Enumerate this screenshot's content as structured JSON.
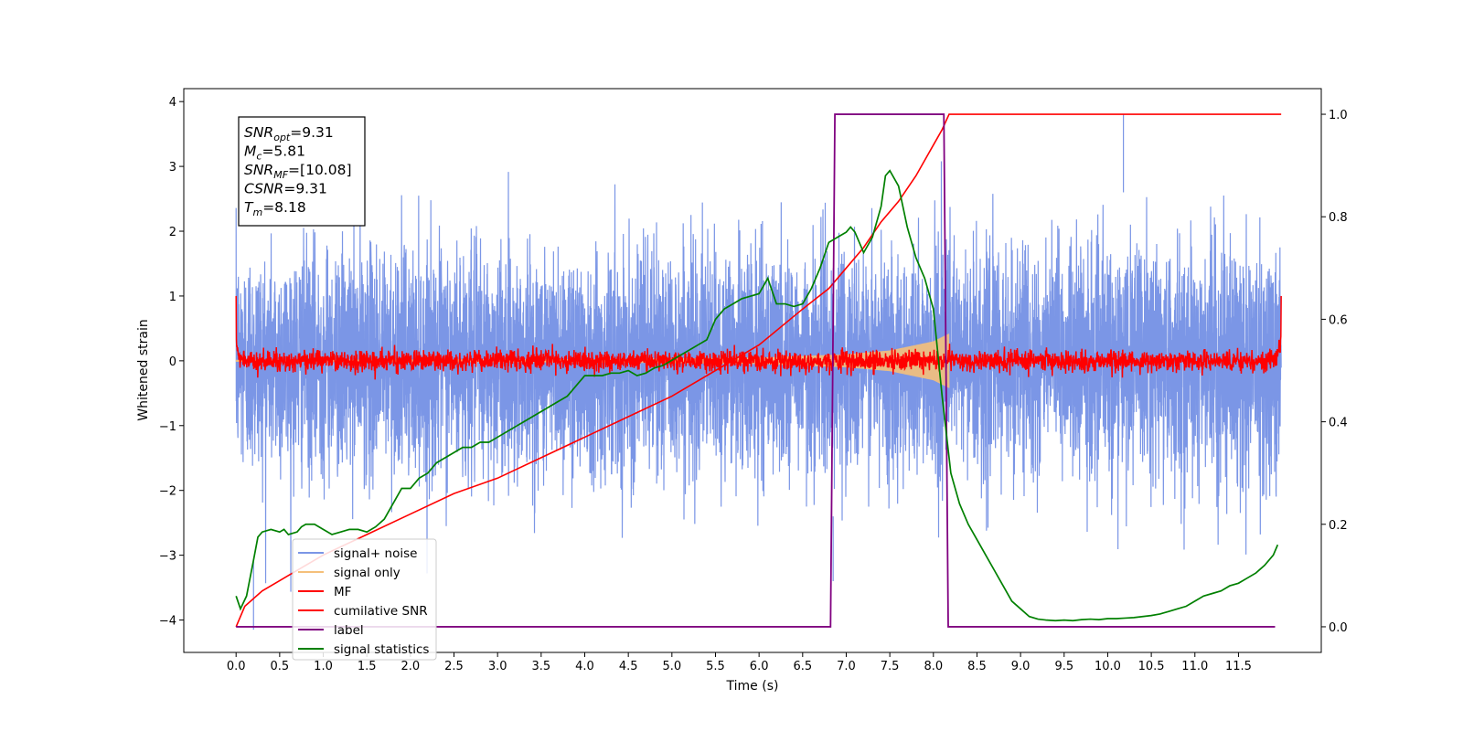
{
  "chart_data": {
    "type": "line",
    "xlabel": "Time (s)",
    "ylabel": "Whitened strain",
    "y2label": "",
    "xlim": [
      -0.6,
      12.45
    ],
    "ylim": [
      -4.5,
      4.2
    ],
    "y2lim": [
      -0.05,
      1.05
    ],
    "x_ticks": [
      0.0,
      0.5,
      1.0,
      1.5,
      2.0,
      2.5,
      3.0,
      3.5,
      4.0,
      4.5,
      5.0,
      5.5,
      6.0,
      6.5,
      7.0,
      7.5,
      8.0,
      8.5,
      9.0,
      9.5,
      10.0,
      10.5,
      11.0,
      11.5
    ],
    "x_tick_labels": [
      "0.0",
      "0.5",
      "1.0",
      "1.5",
      "2.0",
      "2.5",
      "3.0",
      "3.5",
      "4.0",
      "4.5",
      "5.0",
      "5.5",
      "6.0",
      "6.5",
      "7.0",
      "7.5",
      "8.0",
      "8.5",
      "9.0",
      "9.5",
      "10.0",
      "10.5",
      "11.0",
      "11.5"
    ],
    "y_ticks": [
      -4,
      -3,
      -2,
      -1,
      0,
      1,
      2,
      3,
      4
    ],
    "y_tick_labels": [
      "−4",
      "−3",
      "−2",
      "−1",
      "0",
      "1",
      "2",
      "3",
      "4"
    ],
    "y2_ticks": [
      0.0,
      0.2,
      0.4,
      0.6,
      0.8,
      1.0
    ],
    "y2_tick_labels": [
      "0.0",
      "0.2",
      "0.4",
      "0.6",
      "0.8",
      "1.0"
    ],
    "grid": false,
    "legend_position": "lower-left",
    "annotation": {
      "lines": [
        {
          "base": "SNR",
          "sub": "opt",
          "value": "=9.31"
        },
        {
          "base": "M",
          "sub": "c",
          "value": "=5.81"
        },
        {
          "base": "SNR",
          "sub": "MF",
          "value": "=[10.08]"
        },
        {
          "base": "CSNR",
          "sub": "",
          "value": "=9.31"
        },
        {
          "base": "T",
          "sub": "m",
          "value": "=8.18"
        }
      ]
    },
    "series": [
      {
        "name": "signal+ noise",
        "color": "#7b96e6",
        "axis": "left",
        "style": "noise",
        "x_range": [
          0.0,
          11.99
        ],
        "amplitude_sd": 0.85,
        "spikes_max": 3.8,
        "spikes_min": -4.15
      },
      {
        "name": "signal only",
        "color": "#f5c07a",
        "axis": "left",
        "style": "chirp",
        "x_range": [
          0.0,
          8.18
        ],
        "envelope": [
          [
            0.0,
            0.015
          ],
          [
            4.0,
            0.025
          ],
          [
            6.0,
            0.05
          ],
          [
            7.0,
            0.1
          ],
          [
            7.5,
            0.16
          ],
          [
            8.0,
            0.3
          ],
          [
            8.18,
            0.42
          ]
        ]
      },
      {
        "name": "MF",
        "color": "#ff0000",
        "axis": "left",
        "style": "mf",
        "x_range": [
          0.0,
          11.99
        ],
        "amplitude_sd": 0.08,
        "start_value": 1.0,
        "end_value": 1.0
      },
      {
        "name": "cumilative SNR",
        "color": "#ff0000",
        "axis": "right",
        "x": [
          0.0,
          0.1,
          0.3,
          0.6,
          1.0,
          1.5,
          2.0,
          2.5,
          3.0,
          3.5,
          4.0,
          4.5,
          5.0,
          5.5,
          6.0,
          6.5,
          6.8,
          7.0,
          7.2,
          7.4,
          7.6,
          7.8,
          8.0,
          8.1,
          8.18,
          11.99
        ],
        "y": [
          0.0,
          0.04,
          0.07,
          0.1,
          0.14,
          0.18,
          0.22,
          0.26,
          0.29,
          0.33,
          0.37,
          0.41,
          0.45,
          0.5,
          0.55,
          0.62,
          0.66,
          0.7,
          0.74,
          0.79,
          0.83,
          0.88,
          0.94,
          0.97,
          1.0,
          1.0
        ]
      },
      {
        "name": "label",
        "color": "#800080",
        "axis": "right",
        "x": [
          0.0,
          6.82,
          6.87,
          8.12,
          8.17,
          11.92
        ],
        "y": [
          0.0,
          0.0,
          1.0,
          1.0,
          0.0,
          0.0
        ]
      },
      {
        "name": "signal statistics",
        "color": "#008000",
        "axis": "right",
        "x": [
          0.0,
          0.05,
          0.12,
          0.2,
          0.25,
          0.3,
          0.4,
          0.5,
          0.55,
          0.6,
          0.7,
          0.75,
          0.8,
          0.9,
          1.0,
          1.1,
          1.2,
          1.3,
          1.4,
          1.5,
          1.6,
          1.7,
          1.8,
          1.9,
          2.0,
          2.1,
          2.2,
          2.3,
          2.4,
          2.5,
          2.6,
          2.7,
          2.8,
          2.9,
          3.0,
          3.1,
          3.2,
          3.3,
          3.4,
          3.5,
          3.6,
          3.7,
          3.8,
          3.9,
          4.0,
          4.1,
          4.2,
          4.3,
          4.4,
          4.5,
          4.6,
          4.7,
          4.8,
          4.9,
          5.0,
          5.1,
          5.2,
          5.3,
          5.4,
          5.5,
          5.6,
          5.7,
          5.8,
          5.9,
          6.0,
          6.1,
          6.2,
          6.3,
          6.4,
          6.5,
          6.6,
          6.7,
          6.8,
          6.9,
          7.0,
          7.05,
          7.1,
          7.15,
          7.2,
          7.3,
          7.4,
          7.45,
          7.5,
          7.6,
          7.7,
          7.8,
          7.9,
          8.0,
          8.1,
          8.2,
          8.3,
          8.4,
          8.5,
          8.6,
          8.7,
          8.8,
          8.9,
          9.0,
          9.1,
          9.2,
          9.3,
          9.4,
          9.5,
          9.6,
          9.7,
          9.8,
          9.9,
          10.0,
          10.1,
          10.2,
          10.3,
          10.4,
          10.5,
          10.6,
          10.7,
          10.8,
          10.9,
          11.0,
          11.1,
          11.2,
          11.3,
          11.4,
          11.5,
          11.6,
          11.7,
          11.8,
          11.9,
          11.95
        ],
        "y": [
          0.06,
          0.035,
          0.06,
          0.13,
          0.175,
          0.185,
          0.19,
          0.185,
          0.19,
          0.18,
          0.185,
          0.195,
          0.2,
          0.2,
          0.19,
          0.18,
          0.185,
          0.19,
          0.19,
          0.185,
          0.195,
          0.21,
          0.24,
          0.27,
          0.27,
          0.29,
          0.3,
          0.32,
          0.33,
          0.34,
          0.35,
          0.35,
          0.36,
          0.36,
          0.37,
          0.38,
          0.39,
          0.4,
          0.41,
          0.42,
          0.43,
          0.44,
          0.45,
          0.47,
          0.49,
          0.49,
          0.49,
          0.495,
          0.495,
          0.5,
          0.49,
          0.495,
          0.505,
          0.51,
          0.52,
          0.53,
          0.54,
          0.55,
          0.56,
          0.6,
          0.62,
          0.63,
          0.64,
          0.645,
          0.65,
          0.68,
          0.63,
          0.63,
          0.625,
          0.63,
          0.66,
          0.7,
          0.75,
          0.76,
          0.77,
          0.78,
          0.77,
          0.75,
          0.73,
          0.76,
          0.82,
          0.88,
          0.89,
          0.86,
          0.78,
          0.72,
          0.68,
          0.62,
          0.45,
          0.3,
          0.24,
          0.2,
          0.17,
          0.14,
          0.11,
          0.08,
          0.05,
          0.035,
          0.02,
          0.015,
          0.013,
          0.012,
          0.013,
          0.012,
          0.014,
          0.015,
          0.014,
          0.016,
          0.016,
          0.017,
          0.018,
          0.02,
          0.022,
          0.025,
          0.03,
          0.035,
          0.04,
          0.05,
          0.06,
          0.065,
          0.07,
          0.08,
          0.085,
          0.095,
          0.105,
          0.12,
          0.14,
          0.16
        ]
      }
    ]
  }
}
